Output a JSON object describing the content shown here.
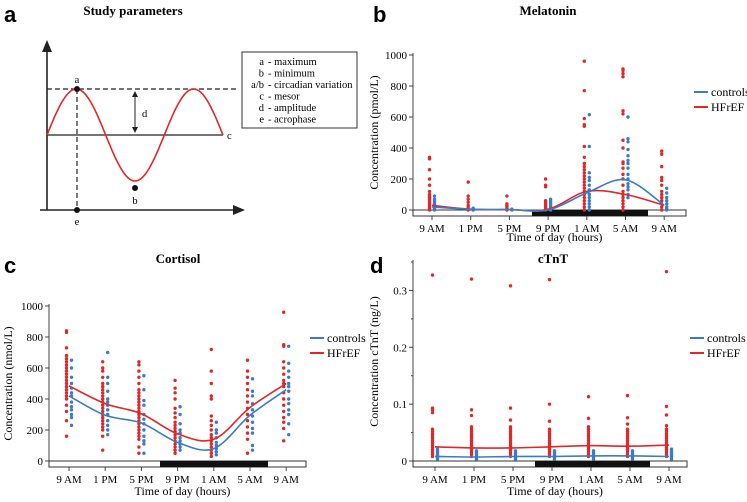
{
  "panels": {
    "a": {
      "letter": "a",
      "title": "Study parameters",
      "point_labels": {
        "a": "a",
        "b": "b",
        "c": "c",
        "d": "d",
        "e": "e"
      },
      "legend": [
        {
          "key": "a",
          "desc": "- maximum"
        },
        {
          "key": "b",
          "desc": "- minimum"
        },
        {
          "key": "a/b",
          "desc": "- circadian variation"
        },
        {
          "key": "c",
          "desc": "- mesor"
        },
        {
          "key": "d",
          "desc": "- amplitude"
        },
        {
          "key": "e",
          "desc": "- acrophase"
        }
      ]
    },
    "b": {
      "letter": "b"
    },
    "c": {
      "letter": "c"
    },
    "d": {
      "letter": "d"
    }
  },
  "colors": {
    "controls": "#3a7cc8",
    "HFrEF": "#e02828"
  },
  "chart_data": [
    {
      "id": "b",
      "type": "scatter",
      "title": "Melatonin",
      "xlabel": "Time of day (hours)",
      "ylabel": "Concentration (pmol/L)",
      "categories": [
        "9 AM",
        "1 PM",
        "5 PM",
        "9 PM",
        "1 AM",
        "5 AM",
        "9 AM"
      ],
      "ylim": [
        0,
        1000
      ],
      "yticks": [
        0,
        200,
        400,
        600,
        800,
        1000
      ],
      "night_band": [
        3.4,
        5.6
      ],
      "legend": [
        "controls",
        "HFrEF"
      ],
      "legend_position": "right",
      "series": [
        {
          "name": "controls",
          "fit": [
            20,
            5,
            3,
            0,
            110,
            195,
            30
          ],
          "points": [
            [
              0,
              5,
              10,
              20,
              30,
              40,
              50,
              60,
              70,
              90
            ],
            [
              0,
              3,
              8,
              12
            ],
            [
              0,
              2,
              6
            ],
            [
              0,
              10,
              20,
              30,
              40,
              50,
              60,
              70
            ],
            [
              0,
              20,
              40,
              60,
              80,
              100,
              130,
              160,
              190,
              210,
              240,
              410,
              615
            ],
            [
              80,
              100,
              130,
              150,
              170,
              200,
              230,
              270,
              300,
              320,
              350,
              390,
              440,
              460,
              600
            ],
            [
              0,
              10,
              20,
              40,
              60,
              80,
              110,
              140
            ]
          ]
        },
        {
          "name": "HFrEF",
          "fit": [
            30,
            5,
            2,
            5,
            120,
            100,
            30
          ],
          "points": [
            [
              0,
              10,
              20,
              30,
              40,
              50,
              60,
              70,
              80,
              90,
              100,
              120,
              160,
              200,
              260,
              330,
              340
            ],
            [
              0,
              10,
              20,
              30,
              50,
              70,
              90,
              180
            ],
            [
              0,
              10,
              20,
              30,
              40,
              90
            ],
            [
              0,
              10,
              20,
              30,
              40,
              50,
              60,
              150,
              160,
              200
            ],
            [
              0,
              20,
              40,
              60,
              80,
              100,
              120,
              140,
              160,
              180,
              200,
              220,
              240,
              260,
              280,
              300,
              340,
              410,
              540,
              550,
              590,
              770,
              960
            ],
            [
              0,
              20,
              40,
              60,
              80,
              100,
              120,
              160,
              200,
              230,
              270,
              300,
              310,
              400,
              450,
              620,
              640,
              860,
              880,
              900,
              910
            ],
            [
              0,
              20,
              40,
              60,
              80,
              100,
              120,
              160,
              190,
              210,
              280,
              360,
              380
            ]
          ]
        }
      ]
    },
    {
      "id": "c",
      "type": "scatter",
      "title": "Cortisol",
      "xlabel": "Time of day (hours)",
      "ylabel": "Concentration (nmol/L)",
      "categories": [
        "9 AM",
        "1 PM",
        "5 PM",
        "9 PM",
        "1 AM",
        "5 AM",
        "9 AM"
      ],
      "ylim": [
        0,
        1000
      ],
      "yticks": [
        0,
        200,
        400,
        600,
        800,
        1000
      ],
      "night_band": [
        3.4,
        5.6
      ],
      "legend": [
        "controls",
        "HFrEF"
      ],
      "legend_position": "right",
      "series": [
        {
          "name": "controls",
          "fit": [
            420,
            295,
            245,
            120,
            80,
            295,
            460
          ],
          "points": [
            [
              230,
              280,
              300,
              330,
              350,
              380,
              420,
              440,
              470,
              500,
              540,
              600,
              650
            ],
            [
              170,
              200,
              230,
              260,
              300,
              330,
              360,
              380,
              400,
              450,
              500,
              540,
              700
            ],
            [
              50,
              110,
              130,
              160,
              200,
              240,
              270,
              300,
              360,
              390,
              460,
              550
            ],
            [
              70,
              90,
              110,
              130,
              150,
              180,
              200,
              240,
              300,
              350
            ],
            [
              40,
              60,
              80,
              100,
              120,
              150,
              180,
              200,
              250
            ],
            [
              70,
              100,
              180,
              210,
              250,
              290,
              330,
              370,
              420,
              450,
              530
            ],
            [
              170,
              240,
              300,
              330,
              370,
              400,
              450,
              480,
              500,
              540,
              580,
              630,
              740
            ]
          ]
        },
        {
          "name": "HFrEF",
          "fit": [
            485,
            370,
            305,
            175,
            140,
            345,
            500
          ],
          "points": [
            [
              160,
              260,
              320,
              360,
              400,
              420,
              440,
              460,
              480,
              500,
              520,
              540,
              560,
              580,
              600,
              620,
              640,
              660,
              680,
              730,
              830,
              840
            ],
            [
              70,
              160,
              200,
              220,
              240,
              260,
              280,
              300,
              320,
              340,
              360,
              380,
              400,
              420,
              440,
              460,
              480,
              500,
              540,
              580,
              600,
              640
            ],
            [
              50,
              90,
              140,
              160,
              180,
              200,
              220,
              240,
              260,
              280,
              300,
              320,
              340,
              360,
              380,
              400,
              420,
              440,
              460,
              500,
              540,
              580,
              620,
              640
            ],
            [
              50,
              70,
              90,
              110,
              130,
              150,
              170,
              190,
              210,
              230,
              250,
              280,
              310,
              340,
              400,
              440,
              470,
              520
            ],
            [
              30,
              50,
              70,
              90,
              110,
              130,
              150,
              170,
              200,
              230,
              260,
              290,
              400,
              420,
              500,
              580,
              720
            ],
            [
              50,
              140,
              180,
              220,
              260,
              300,
              340,
              380,
              420,
              460,
              500,
              540,
              580,
              650
            ],
            [
              130,
              210,
              250,
              280,
              320,
              360,
              400,
              440,
              480,
              500,
              520,
              560,
              600,
              640,
              740,
              750,
              960
            ]
          ]
        }
      ]
    },
    {
      "id": "d",
      "type": "scatter",
      "title": "cTnT",
      "xlabel": "Time of day (hours)",
      "ylabel": "Concentration cTnT (ng/L)",
      "categories": [
        "9 AM",
        "1 PM",
        "5 PM",
        "9 PM",
        "1 AM",
        "5 AM",
        "9 AM"
      ],
      "ylim": [
        0,
        0.35
      ],
      "yticks": [
        0,
        0.1,
        0.2,
        0.3
      ],
      "night_band": [
        3.4,
        5.6
      ],
      "legend": [
        "controls",
        "HFrEF"
      ],
      "legend_position": "right",
      "series": [
        {
          "name": "controls",
          "fit": [
            0.008,
            0.007,
            0.008,
            0.008,
            0.009,
            0.009,
            0.008
          ],
          "points": [
            [
              0.003,
              0.006,
              0.009,
              0.012,
              0.015,
              0.018,
              0.021
            ],
            [
              0.003,
              0.006,
              0.009,
              0.012,
              0.015,
              0.018
            ],
            [
              0.003,
              0.006,
              0.009,
              0.012,
              0.015,
              0.018
            ],
            [
              0.003,
              0.006,
              0.009,
              0.012,
              0.015,
              0.018
            ],
            [
              0.003,
              0.006,
              0.009,
              0.012,
              0.015,
              0.018
            ],
            [
              0.003,
              0.006,
              0.009,
              0.012,
              0.015,
              0.018
            ],
            [
              0.003,
              0.006,
              0.009,
              0.012,
              0.015,
              0.018,
              0.021
            ]
          ]
        },
        {
          "name": "HFrEF",
          "fit": [
            0.025,
            0.023,
            0.023,
            0.025,
            0.027,
            0.026,
            0.028
          ],
          "points": [
            [
              0.008,
              0.012,
              0.016,
              0.02,
              0.024,
              0.028,
              0.032,
              0.036,
              0.04,
              0.044,
              0.048,
              0.052,
              0.056,
              0.085,
              0.09,
              0.093,
              0.327
            ],
            [
              0.008,
              0.012,
              0.016,
              0.02,
              0.024,
              0.028,
              0.032,
              0.036,
              0.04,
              0.044,
              0.048,
              0.052,
              0.056,
              0.06,
              0.08,
              0.09,
              0.32
            ],
            [
              0.008,
              0.012,
              0.016,
              0.02,
              0.024,
              0.028,
              0.032,
              0.036,
              0.04,
              0.044,
              0.048,
              0.052,
              0.056,
              0.06,
              0.072,
              0.093,
              0.308
            ],
            [
              0.008,
              0.012,
              0.016,
              0.02,
              0.024,
              0.028,
              0.032,
              0.036,
              0.04,
              0.044,
              0.048,
              0.052,
              0.056,
              0.07,
              0.1,
              0.319
            ],
            [
              0.008,
              0.012,
              0.016,
              0.02,
              0.024,
              0.028,
              0.032,
              0.036,
              0.04,
              0.044,
              0.048,
              0.052,
              0.056,
              0.06,
              0.075,
              0.113
            ],
            [
              0.008,
              0.012,
              0.016,
              0.02,
              0.024,
              0.028,
              0.032,
              0.036,
              0.04,
              0.044,
              0.048,
              0.052,
              0.056,
              0.065,
              0.076,
              0.115
            ],
            [
              0.008,
              0.012,
              0.016,
              0.02,
              0.024,
              0.028,
              0.032,
              0.036,
              0.04,
              0.044,
              0.048,
              0.052,
              0.056,
              0.062,
              0.081,
              0.096,
              0.333
            ]
          ]
        }
      ]
    }
  ]
}
